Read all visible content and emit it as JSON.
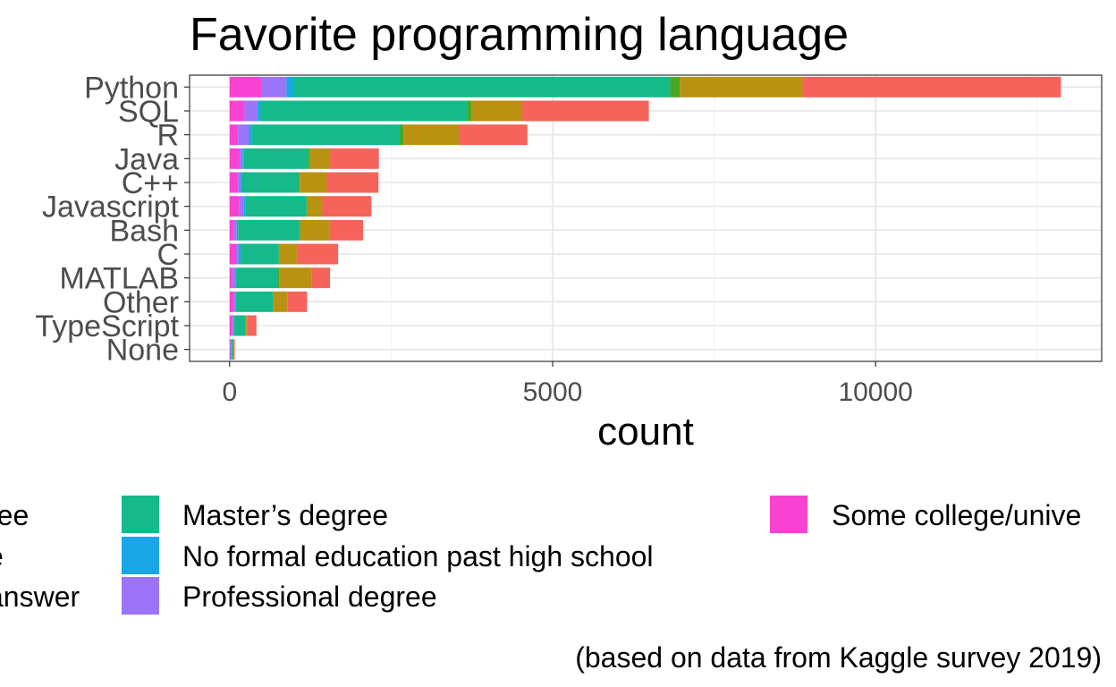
{
  "chart_data": {
    "type": "bar",
    "orientation": "horizontal",
    "stacked": true,
    "title": "Favorite programming language",
    "xlabel": "count",
    "ylabel": "",
    "caption": "(based on data from Kaggle survey 2019)",
    "xlim": [
      -620,
      13500
    ],
    "x_ticks": [
      0,
      5000,
      10000
    ],
    "x_tick_labels": [
      "0",
      "5000",
      "10000"
    ],
    "grid": true,
    "legend_position": "bottom",
    "categories": [
      "Python",
      "SQL",
      "R",
      "Java",
      "C++",
      "Javascript",
      "Bash",
      "C",
      "MATLAB",
      "Other",
      "TypeScript",
      "None"
    ],
    "series": [
      {
        "name": "Some college/university study without earning a bachelor's degree",
        "label": "Some college/unive",
        "color": "#f843d2",
        "values": [
          500,
          230,
          130,
          160,
          130,
          150,
          70,
          100,
          40,
          60,
          40,
          10
        ]
      },
      {
        "name": "Professional degree",
        "label": "Professional degree",
        "color": "#9b74f8",
        "values": [
          380,
          200,
          170,
          40,
          40,
          70,
          40,
          40,
          50,
          30,
          20,
          10
        ]
      },
      {
        "name": "No formal education past high school",
        "label": "No formal education past high school",
        "color": "#19a6e6",
        "values": [
          120,
          50,
          40,
          20,
          20,
          30,
          20,
          30,
          10,
          10,
          10,
          5
        ]
      },
      {
        "name": "Master's degree",
        "label": "Master’s degree",
        "color": "#15b98a",
        "values": [
          5820,
          3200,
          2300,
          1000,
          880,
          940,
          950,
          590,
          650,
          570,
          180,
          30
        ]
      },
      {
        "name": "Doctoral degree",
        "label": "",
        "color": "#4ba71f",
        "values": [
          150,
          60,
          50,
          20,
          15,
          15,
          15,
          10,
          15,
          10,
          5,
          5
        ]
      },
      {
        "name": "I prefer not to answer",
        "label": "answer",
        "color": "#b99212",
        "values": [
          1900,
          790,
          870,
          300,
          420,
          230,
          450,
          270,
          500,
          220,
          20,
          5
        ]
      },
      {
        "name": "Bachelor's degree",
        "label": "ree",
        "color": "#f5635b",
        "values": [
          4000,
          1960,
          1050,
          770,
          800,
          760,
          520,
          640,
          290,
          300,
          140,
          15
        ]
      }
    ],
    "legend": {
      "col1": [
        {
          "label": "ree",
          "color": "#f5635b",
          "key_visible": false
        },
        {
          "label": "e",
          "color": "#4ba71f",
          "key_visible": false
        },
        {
          "label": "answer",
          "color": "#b99212",
          "key_visible": false
        }
      ],
      "col2": [
        {
          "label": "Master’s degree",
          "color": "#15b98a"
        },
        {
          "label": "No formal education past high school",
          "color": "#19a6e6"
        },
        {
          "label": "Professional degree",
          "color": "#9b74f8"
        }
      ],
      "col3": [
        {
          "label": "Some college/unive",
          "color": "#f843d2"
        }
      ]
    }
  }
}
